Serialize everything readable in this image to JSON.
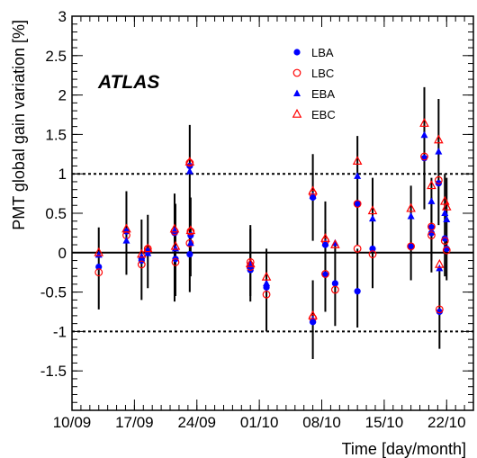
{
  "chart_data": {
    "type": "scatter",
    "title": "",
    "experiment_label": "ATLAS",
    "xlabel": "Time [day/month]",
    "ylabel": "PMT global gain variation [%]",
    "x_units": "days since 10/09",
    "xlim": [
      0,
      45
    ],
    "ylim": [
      -2,
      3
    ],
    "x_ticks": [
      {
        "x": 0,
        "label": "10/09"
      },
      {
        "x": 7,
        "label": "17/09"
      },
      {
        "x": 14,
        "label": "24/09"
      },
      {
        "x": 21,
        "label": "01/10"
      },
      {
        "x": 28,
        "label": "08/10"
      },
      {
        "x": 35,
        "label": "15/10"
      },
      {
        "x": 42,
        "label": "22/10"
      }
    ],
    "y_ticks": [
      {
        "y": 3,
        "label": "3"
      },
      {
        "y": 2.5,
        "label": "2.5"
      },
      {
        "y": 2,
        "label": "2"
      },
      {
        "y": 1.5,
        "label": "1.5"
      },
      {
        "y": 1,
        "label": "1"
      },
      {
        "y": 0.5,
        "label": "0.5"
      },
      {
        "y": 0,
        "label": "0"
      },
      {
        "y": -0.5,
        "label": "-0.5"
      },
      {
        "y": -1,
        "label": "-1"
      },
      {
        "y": -1.5,
        "label": "-1.5"
      }
    ],
    "reference_lines": [
      {
        "y": 0,
        "style": "solid"
      },
      {
        "y": 1,
        "style": "dotted"
      },
      {
        "y": -1,
        "style": "dotted"
      }
    ],
    "legend_position": "top-right",
    "series": [
      {
        "name": "LBA",
        "marker": "filled-circle",
        "color": "#0000ff",
        "points": [
          [
            3.0,
            -0.18
          ],
          [
            6.1,
            0.27
          ],
          [
            7.8,
            -0.1
          ],
          [
            8.5,
            0.02
          ],
          [
            11.5,
            0.25
          ],
          [
            11.6,
            -0.08
          ],
          [
            13.2,
            1.1
          ],
          [
            13.3,
            0.22
          ],
          [
            13.2,
            -0.02
          ],
          [
            20.0,
            -0.22
          ],
          [
            20.0,
            -0.15
          ],
          [
            21.8,
            -0.44
          ],
          [
            27.0,
            0.7
          ],
          [
            27.0,
            -0.88
          ],
          [
            28.4,
            -0.28
          ],
          [
            28.4,
            0.1
          ],
          [
            29.5,
            -0.39
          ],
          [
            32.0,
            0.62
          ],
          [
            32.0,
            -0.49
          ],
          [
            33.7,
            0.05
          ],
          [
            38.0,
            0.08
          ],
          [
            39.5,
            1.2
          ],
          [
            40.3,
            0.32
          ],
          [
            40.3,
            0.25
          ],
          [
            41.1,
            0.88
          ],
          [
            41.2,
            -0.75
          ],
          [
            41.8,
            0.18
          ],
          [
            42.0,
            0.05
          ]
        ]
      },
      {
        "name": "LBC",
        "marker": "open-circle",
        "color": "#ff0000",
        "points": [
          [
            3.0,
            -0.25
          ],
          [
            6.1,
            0.22
          ],
          [
            7.8,
            -0.15
          ],
          [
            8.5,
            0.05
          ],
          [
            11.5,
            0.27
          ],
          [
            11.6,
            -0.12
          ],
          [
            13.2,
            1.14
          ],
          [
            13.3,
            0.27
          ],
          [
            13.2,
            0.12
          ],
          [
            20.0,
            -0.18
          ],
          [
            20.0,
            -0.12
          ],
          [
            21.8,
            -0.53
          ],
          [
            27.0,
            0.75
          ],
          [
            27.0,
            -0.83
          ],
          [
            28.4,
            -0.27
          ],
          [
            28.4,
            0.15
          ],
          [
            29.5,
            -0.47
          ],
          [
            32.0,
            0.62
          ],
          [
            32.0,
            0.05
          ],
          [
            33.7,
            -0.02
          ],
          [
            38.0,
            0.08
          ],
          [
            39.5,
            1.22
          ],
          [
            40.3,
            0.33
          ],
          [
            40.3,
            0.22
          ],
          [
            41.1,
            0.92
          ],
          [
            41.2,
            -0.72
          ],
          [
            41.8,
            0.15
          ],
          [
            42.0,
            0.03
          ]
        ]
      },
      {
        "name": "EBA",
        "marker": "filled-triangle",
        "color": "#0000ff",
        "points": [
          [
            3.0,
            -0.03
          ],
          [
            6.1,
            0.15
          ],
          [
            7.8,
            -0.05
          ],
          [
            8.5,
            -0.01
          ],
          [
            11.5,
            0.28
          ],
          [
            11.6,
            0.05
          ],
          [
            13.2,
            1.03
          ],
          [
            13.3,
            0.12
          ],
          [
            20.0,
            -0.17
          ],
          [
            21.8,
            -0.39
          ],
          [
            27.0,
            0.72
          ],
          [
            27.0,
            -0.85
          ],
          [
            28.4,
            0.12
          ],
          [
            29.5,
            0.12
          ],
          [
            32.0,
            0.97
          ],
          [
            33.7,
            0.43
          ],
          [
            38.0,
            0.46
          ],
          [
            39.5,
            1.49
          ],
          [
            40.3,
            0.65
          ],
          [
            41.1,
            1.28
          ],
          [
            41.2,
            -0.2
          ],
          [
            41.8,
            0.5
          ],
          [
            42.0,
            0.42
          ]
        ]
      },
      {
        "name": "EBC",
        "marker": "open-triangle",
        "color": "#ff0000",
        "points": [
          [
            3.0,
            0.0
          ],
          [
            6.1,
            0.3
          ],
          [
            7.8,
            -0.02
          ],
          [
            8.5,
            0.05
          ],
          [
            11.5,
            0.3
          ],
          [
            11.6,
            0.08
          ],
          [
            13.2,
            1.15
          ],
          [
            13.3,
            0.28
          ],
          [
            20.0,
            -0.14
          ],
          [
            21.8,
            -0.31
          ],
          [
            27.0,
            0.78
          ],
          [
            27.0,
            -0.8
          ],
          [
            28.4,
            0.18
          ],
          [
            29.5,
            0.1
          ],
          [
            32.0,
            1.16
          ],
          [
            33.7,
            0.53
          ],
          [
            38.0,
            0.56
          ],
          [
            39.5,
            1.64
          ],
          [
            40.3,
            0.85
          ],
          [
            41.1,
            1.43
          ],
          [
            41.2,
            -0.15
          ],
          [
            41.8,
            0.65
          ],
          [
            42.0,
            0.58
          ]
        ]
      }
    ],
    "error_bars": [
      [
        3.0,
        -0.72,
        0.32
      ],
      [
        6.1,
        -0.28,
        0.78
      ],
      [
        7.8,
        -0.6,
        0.42
      ],
      [
        8.5,
        -0.45,
        0.48
      ],
      [
        11.5,
        -0.62,
        0.75
      ],
      [
        11.6,
        -0.55,
        0.62
      ],
      [
        13.2,
        -0.5,
        1.62
      ],
      [
        13.3,
        -0.3,
        0.7
      ],
      [
        20.0,
        -0.62,
        0.35
      ],
      [
        20.0,
        -0.55,
        0.3
      ],
      [
        21.8,
        -1.0,
        0.05
      ],
      [
        27.0,
        0.15,
        1.25
      ],
      [
        27.0,
        -1.35,
        -0.35
      ],
      [
        28.4,
        -0.75,
        0.3
      ],
      [
        28.4,
        -0.3,
        0.65
      ],
      [
        29.5,
        -0.93,
        0.15
      ],
      [
        32.0,
        0.1,
        1.48
      ],
      [
        32.0,
        -0.95,
        0.05
      ],
      [
        33.7,
        -0.45,
        0.95
      ],
      [
        38.0,
        -0.35,
        0.85
      ],
      [
        39.5,
        0.55,
        2.1
      ],
      [
        40.3,
        -0.1,
        0.95
      ],
      [
        40.3,
        -0.25,
        0.7
      ],
      [
        41.1,
        0.35,
        1.95
      ],
      [
        41.2,
        -1.22,
        -0.2
      ],
      [
        41.8,
        -0.3,
        1.0
      ],
      [
        42.0,
        -0.35,
        0.95
      ]
    ]
  }
}
